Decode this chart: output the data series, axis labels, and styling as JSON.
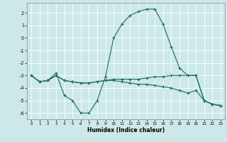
{
  "xlabel": "Humidex (Indice chaleur)",
  "xlim": [
    -0.5,
    23.5
  ],
  "ylim": [
    -6.5,
    2.8
  ],
  "yticks": [
    2,
    1,
    0,
    -1,
    -2,
    -3,
    -4,
    -5,
    -6
  ],
  "xticks": [
    0,
    1,
    2,
    3,
    4,
    5,
    6,
    7,
    8,
    9,
    10,
    11,
    12,
    13,
    14,
    15,
    16,
    17,
    18,
    19,
    20,
    21,
    22,
    23
  ],
  "background_color": "#cce8e8",
  "grid_color": "#ffffff",
  "line_color": "#1a6b6b",
  "line1_x": [
    0,
    1,
    2,
    3,
    4,
    5,
    6,
    7,
    8,
    9,
    10,
    11,
    12,
    13,
    14,
    15,
    16,
    17,
    18,
    19,
    20,
    21,
    22,
    23
  ],
  "line1_y": [
    -3.0,
    -3.5,
    -3.4,
    -2.8,
    -4.6,
    -5.0,
    -6.0,
    -6.0,
    -5.0,
    -3.1,
    0.0,
    1.1,
    1.8,
    2.1,
    2.3,
    2.3,
    1.1,
    -0.7,
    -2.4,
    -3.0,
    -3.0,
    -5.0,
    -5.3,
    -5.4
  ],
  "line2_x": [
    0,
    1,
    2,
    3,
    4,
    5,
    6,
    7,
    8,
    9,
    10,
    11,
    12,
    13,
    14,
    15,
    16,
    17,
    18,
    19,
    20,
    21,
    22,
    23
  ],
  "line2_y": [
    -3.0,
    -3.5,
    -3.4,
    -3.0,
    -3.4,
    -3.5,
    -3.6,
    -3.6,
    -3.5,
    -3.4,
    -3.3,
    -3.3,
    -3.3,
    -3.3,
    -3.2,
    -3.1,
    -3.1,
    -3.0,
    -3.0,
    -3.0,
    -3.0,
    -5.0,
    -5.3,
    -5.4
  ],
  "line3_x": [
    0,
    1,
    2,
    3,
    4,
    5,
    6,
    7,
    8,
    9,
    10,
    11,
    12,
    13,
    14,
    15,
    16,
    17,
    18,
    19,
    20,
    21,
    22,
    23
  ],
  "line3_y": [
    -3.0,
    -3.5,
    -3.4,
    -3.0,
    -3.4,
    -3.5,
    -3.6,
    -3.6,
    -3.5,
    -3.4,
    -3.4,
    -3.5,
    -3.6,
    -3.7,
    -3.7,
    -3.8,
    -3.9,
    -4.0,
    -4.2,
    -4.4,
    -4.2,
    -5.0,
    -5.3,
    -5.4
  ]
}
